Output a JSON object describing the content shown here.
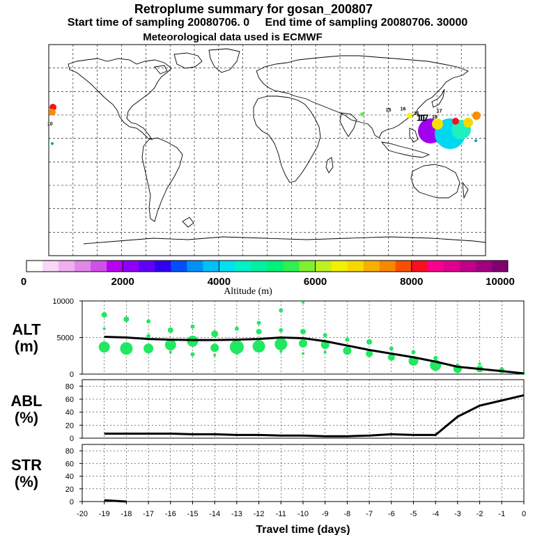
{
  "title": "Retroplume summary for gosan_200807",
  "subtitle_start": "Start time of sampling 20080706.    0",
  "subtitle_end": "End time of sampling 20080706. 30000",
  "met_line": "Meteorological data used is ECMWF",
  "colorbar": {
    "label": "Altitude (m)",
    "ticks": [
      "0",
      "2000",
      "4000",
      "6000",
      "8000",
      "10000"
    ],
    "colors": [
      "#ffffff",
      "#f8d8f8",
      "#f0b0f0",
      "#e088e8",
      "#d050e8",
      "#b800f0",
      "#9000f8",
      "#6000f8",
      "#3000f0",
      "#0050f8",
      "#0090f8",
      "#00c0f8",
      "#00e0f0",
      "#00f0c8",
      "#00f0a0",
      "#00f078",
      "#30f050",
      "#80f030",
      "#c0f020",
      "#f0f000",
      "#f8d800",
      "#f8b000",
      "#f88800",
      "#f85000",
      "#f81020",
      "#f80090",
      "#e00090",
      "#c00088",
      "#a00080",
      "#800070"
    ]
  },
  "map_labels": [
    {
      "text": "10",
      "lon": -179,
      "lat": 21
    },
    {
      "text": "11",
      "lon": 127,
      "lat": 25
    },
    {
      "text": "17",
      "lon": 129,
      "lat": 25
    },
    {
      "text": "18",
      "lon": 138,
      "lat": 27
    },
    {
      "text": "16",
      "lon": 123,
      "lat": 30
    },
    {
      "text": "17",
      "lon": 142,
      "lat": 32
    },
    {
      "text": "15",
      "lon": 100,
      "lat": 33
    },
    {
      "text": "16",
      "lon": 112,
      "lat": 34
    }
  ],
  "chart_data": [
    {
      "type": "line",
      "name": "ALT",
      "ylabel": "ALT\n(m)",
      "ylabel_line1": "ALT",
      "ylabel_line2": "(m)",
      "xlim": [
        -20,
        0
      ],
      "ylim": [
        0,
        10000
      ],
      "yticks": [
        "0",
        "5000",
        "10000"
      ],
      "x": [
        -19,
        -18,
        -17,
        -16,
        -15,
        -14,
        -13,
        -12,
        -11,
        -10,
        -9,
        -8,
        -7,
        -6,
        -5,
        -4,
        -3,
        -2,
        -1,
        0
      ],
      "series": [
        {
          "name": "median altitude",
          "values": [
            5100,
            5000,
            4800,
            4700,
            4650,
            4650,
            4700,
            4800,
            5000,
            4900,
            4500,
            3900,
            3300,
            2800,
            2300,
            1700,
            1000,
            700,
            400,
            100
          ]
        }
      ],
      "scatter": [
        {
          "x": -19,
          "y": 3700,
          "r": 8
        },
        {
          "x": -19,
          "y": 8100,
          "r": 4
        },
        {
          "x": -19,
          "y": 6200,
          "r": 2
        },
        {
          "x": -18,
          "y": 3500,
          "r": 9
        },
        {
          "x": -18,
          "y": 7500,
          "r": 4
        },
        {
          "x": -17,
          "y": 3500,
          "r": 7
        },
        {
          "x": -17,
          "y": 7200,
          "r": 3
        },
        {
          "x": -17,
          "y": 5200,
          "r": 3
        },
        {
          "x": -16,
          "y": 4000,
          "r": 8
        },
        {
          "x": -16,
          "y": 6000,
          "r": 4
        },
        {
          "x": -16,
          "y": 3000,
          "r": 2
        },
        {
          "x": -15,
          "y": 4500,
          "r": 8
        },
        {
          "x": -15,
          "y": 6500,
          "r": 3
        },
        {
          "x": -15,
          "y": 2700,
          "r": 3
        },
        {
          "x": -14,
          "y": 3600,
          "r": 6
        },
        {
          "x": -14,
          "y": 5500,
          "r": 5
        },
        {
          "x": -14,
          "y": 2600,
          "r": 2
        },
        {
          "x": -13,
          "y": 3700,
          "r": 10
        },
        {
          "x": -13,
          "y": 6200,
          "r": 3
        },
        {
          "x": -13,
          "y": 2800,
          "r": 2
        },
        {
          "x": -12,
          "y": 3800,
          "r": 9
        },
        {
          "x": -12,
          "y": 5800,
          "r": 4
        },
        {
          "x": -12,
          "y": 7000,
          "r": 3
        },
        {
          "x": -11,
          "y": 4100,
          "r": 9
        },
        {
          "x": -11,
          "y": 6000,
          "r": 3
        },
        {
          "x": -11,
          "y": 8700,
          "r": 3
        },
        {
          "x": -11,
          "y": 3100,
          "r": 2
        },
        {
          "x": -10,
          "y": 4200,
          "r": 6
        },
        {
          "x": -10,
          "y": 5800,
          "r": 4
        },
        {
          "x": -10,
          "y": 9800,
          "r": 2
        },
        {
          "x": -10,
          "y": 2800,
          "r": 2
        },
        {
          "x": -9,
          "y": 4000,
          "r": 6
        },
        {
          "x": -9,
          "y": 5300,
          "r": 3
        },
        {
          "x": -9,
          "y": 3000,
          "r": 2
        },
        {
          "x": -8,
          "y": 3200,
          "r": 6
        },
        {
          "x": -8,
          "y": 4700,
          "r": 3
        },
        {
          "x": -7,
          "y": 2800,
          "r": 5
        },
        {
          "x": -7,
          "y": 4400,
          "r": 4
        },
        {
          "x": -6,
          "y": 2300,
          "r": 5
        },
        {
          "x": -6,
          "y": 3500,
          "r": 3
        },
        {
          "x": -5,
          "y": 1800,
          "r": 7
        },
        {
          "x": -5,
          "y": 3000,
          "r": 3
        },
        {
          "x": -4,
          "y": 1200,
          "r": 8
        },
        {
          "x": -4,
          "y": 2200,
          "r": 3
        },
        {
          "x": -3,
          "y": 700,
          "r": 6
        },
        {
          "x": -3,
          "y": 1300,
          "r": 2
        },
        {
          "x": -2,
          "y": 700,
          "r": 5
        },
        {
          "x": -2,
          "y": 1400,
          "r": 2
        },
        {
          "x": -1,
          "y": 500,
          "r": 4
        },
        {
          "x": -1,
          "y": 800,
          "r": 2
        },
        {
          "x": 0,
          "y": 100,
          "r": 2
        }
      ]
    },
    {
      "type": "line",
      "name": "ABL",
      "ylabel_line1": "ABL",
      "ylabel_line2": "(%)",
      "xlim": [
        -20,
        0
      ],
      "ylim": [
        0,
        90
      ],
      "yticks": [
        "0",
        "20",
        "40",
        "60",
        "80"
      ],
      "x": [
        -19,
        -18,
        -17,
        -16,
        -15,
        -14,
        -13,
        -12,
        -11,
        -10,
        -9,
        -8,
        -7,
        -6,
        -5,
        -4,
        -3,
        -2,
        -1,
        0
      ],
      "series": [
        {
          "name": "ABL fraction",
          "values": [
            7,
            7,
            7,
            7,
            6,
            6,
            5,
            5,
            4,
            4,
            3,
            3,
            4,
            6,
            5,
            5,
            33,
            50,
            58,
            66
          ]
        }
      ]
    },
    {
      "type": "line",
      "name": "STR",
      "ylabel_line1": "STR",
      "ylabel_line2": "(%)",
      "xlim": [
        -20,
        0
      ],
      "ylim": [
        0,
        90
      ],
      "yticks": [
        "0",
        "20",
        "40",
        "60",
        "80"
      ],
      "x": [
        -19,
        -18
      ],
      "series": [
        {
          "name": "stratosphere fraction",
          "values": [
            2,
            0
          ]
        }
      ],
      "xlabel": "Travel time (days)",
      "xticks": [
        "-20",
        "-19",
        "-18",
        "-17",
        "-16",
        "-15",
        "-14",
        "-13",
        "-12",
        "-11",
        "-10",
        "-9",
        "-8",
        "-7",
        "-6",
        "-5",
        "-4",
        "-3",
        "-2",
        "-1",
        "0"
      ]
    }
  ],
  "colors": {
    "scatter": "#20e860",
    "line": "#000000"
  }
}
